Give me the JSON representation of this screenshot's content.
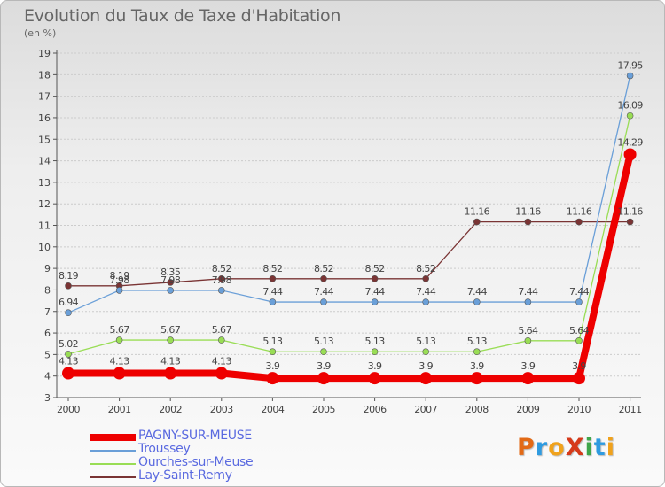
{
  "title": "Evolution du Taux de Taxe d'Habitation",
  "unit_label": "(en %)",
  "colors": {
    "grid": "#cccccc",
    "axis": "#555555",
    "legend_text": "#5a6ae0"
  },
  "logo": {
    "letters": [
      {
        "ch": "P",
        "color": "#e26a16"
      },
      {
        "ch": "r",
        "color": "#2f9be0"
      },
      {
        "ch": "o",
        "color": "#f0a21c"
      },
      {
        "ch": "X",
        "color": "#d63a1a"
      },
      {
        "ch": "i",
        "color": "#3fa64a"
      },
      {
        "ch": "t",
        "color": "#2f9be0"
      },
      {
        "ch": "i",
        "color": "#f0a21c"
      }
    ]
  },
  "chart_data": {
    "type": "line",
    "title": "Evolution du Taux de Taxe d'Habitation",
    "ylabel": "(en %)",
    "xlabel": "",
    "x": [
      "2000",
      "2001",
      "2002",
      "2003",
      "2004",
      "2005",
      "2006",
      "2007",
      "2008",
      "2009",
      "2010",
      "2011"
    ],
    "ylim": [
      3,
      19
    ],
    "yticks": [
      3,
      4,
      5,
      6,
      7,
      8,
      9,
      10,
      11,
      12,
      13,
      14,
      15,
      16,
      17,
      18,
      19
    ],
    "grid": true,
    "legend_position": "bottom-left",
    "series": [
      {
        "name": "PAGNY-SUR-MEUSE",
        "color": "#ee0000",
        "line_width": 8,
        "marker_radius": 7,
        "values": [
          4.13,
          4.13,
          4.13,
          4.13,
          3.9,
          3.9,
          3.9,
          3.9,
          3.9,
          3.9,
          3.9,
          14.29
        ],
        "labels": [
          "4.13",
          "4.13",
          "4.13",
          "4.13",
          "3.9",
          "3.9",
          "3.9",
          "3.9",
          "3.9",
          "3.9",
          "3.9",
          "14.29"
        ]
      },
      {
        "name": "Troussey",
        "color": "#6a9fd8",
        "line_width": 1.3,
        "marker_radius": 3.5,
        "values": [
          6.94,
          7.98,
          7.98,
          7.98,
          7.44,
          7.44,
          7.44,
          7.44,
          7.44,
          7.44,
          7.44,
          17.95
        ],
        "labels": [
          "6.94",
          "7.98",
          "7.98",
          "7.98",
          "7.44",
          "7.44",
          "7.44",
          "7.44",
          "7.44",
          "7.44",
          "7.44",
          "17.95"
        ]
      },
      {
        "name": "Ourches-sur-Meuse",
        "color": "#99dd55",
        "line_width": 1.3,
        "marker_radius": 3.5,
        "values": [
          5.02,
          5.67,
          5.67,
          5.67,
          5.13,
          5.13,
          5.13,
          5.13,
          5.13,
          5.64,
          5.64,
          16.09
        ],
        "labels": [
          "5.02",
          "5.67",
          "5.67",
          "5.67",
          "5.13",
          "5.13",
          "5.13",
          "5.13",
          "5.13",
          "5.64",
          "5.64",
          "16.09"
        ]
      },
      {
        "name": "Lay-Saint-Remy",
        "color": "#7a3434",
        "line_width": 1.3,
        "marker_radius": 3.5,
        "values": [
          8.19,
          8.19,
          8.35,
          8.52,
          8.52,
          8.52,
          8.52,
          8.52,
          11.16,
          11.16,
          11.16,
          11.16
        ],
        "labels": [
          "8.19",
          "8.19",
          "8.35",
          "8.52",
          "8.52",
          "8.52",
          "8.52",
          "8.52",
          "11.16",
          "11.16",
          "11.16",
          "11.16"
        ]
      }
    ]
  }
}
